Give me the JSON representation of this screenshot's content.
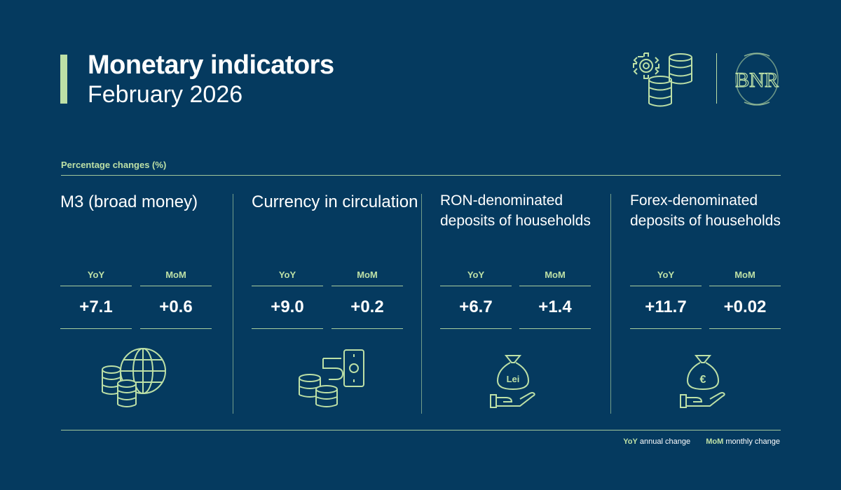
{
  "header": {
    "title": "Monetary indicators",
    "subtitle": "February 2026"
  },
  "section_label": "Percentage changes (%)",
  "columns": [
    {
      "title": "M3 (broad money)",
      "yoy_label": "YoY",
      "yoy_value": "+7.1",
      "mom_label": "MoM",
      "mom_value": "+0.6",
      "icon": "globe-coins-icon"
    },
    {
      "title": "Currency in circulation",
      "yoy_label": "YoY",
      "yoy_value": "+9.0",
      "mom_label": "MoM",
      "mom_value": "+0.2",
      "icon": "banknote-coins-icon"
    },
    {
      "title": "RON-denominated deposits of households",
      "yoy_label": "YoY",
      "yoy_value": "+6.7",
      "mom_label": "MoM",
      "mom_value": "+1.4",
      "icon": "lei-money-bag-icon",
      "icon_text": "Lei"
    },
    {
      "title": "Forex-denominated deposits of households",
      "yoy_label": "YoY",
      "yoy_value": "+11.7",
      "mom_label": "MoM",
      "mom_value": "+0.02",
      "icon": "euro-money-bag-icon",
      "icon_text": "€"
    }
  ],
  "legend": {
    "yoy_abbr": "YoY",
    "yoy_text": "annual change",
    "mom_abbr": "MoM",
    "mom_text": "monthly change"
  },
  "logo_text": "BNR",
  "colors": {
    "background": "#053a5f",
    "accent": "#bde0a6",
    "text": "#ffffff"
  }
}
